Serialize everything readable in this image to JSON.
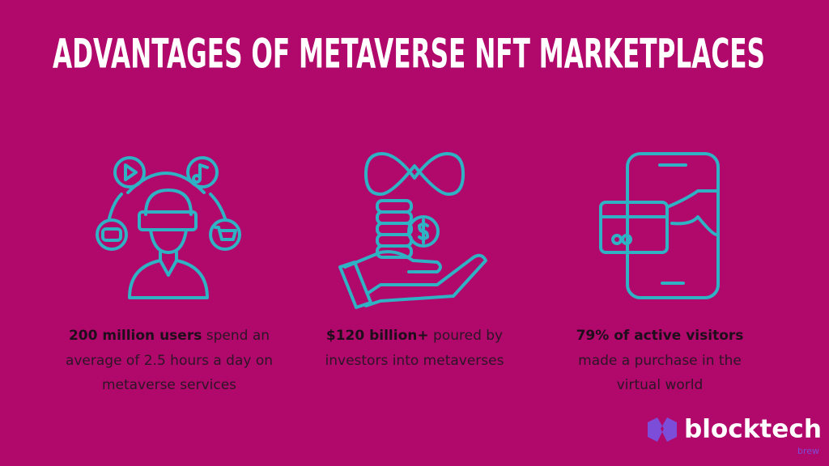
{
  "title": "ADVANTAGES OF METAVERSE NFT MARKETPLACES",
  "items": [
    {
      "bold": "200 million users",
      "text": "spend an average of 2.5 hours a day on metaverse services"
    },
    {
      "bold": "$120 billion+",
      "text": "poured by investors into metaverses"
    },
    {
      "bold": "79% of active visitors",
      "text": "made a purchase in the virtual world"
    }
  ],
  "logo": {
    "name": "blocktech",
    "sub": "brew"
  }
}
